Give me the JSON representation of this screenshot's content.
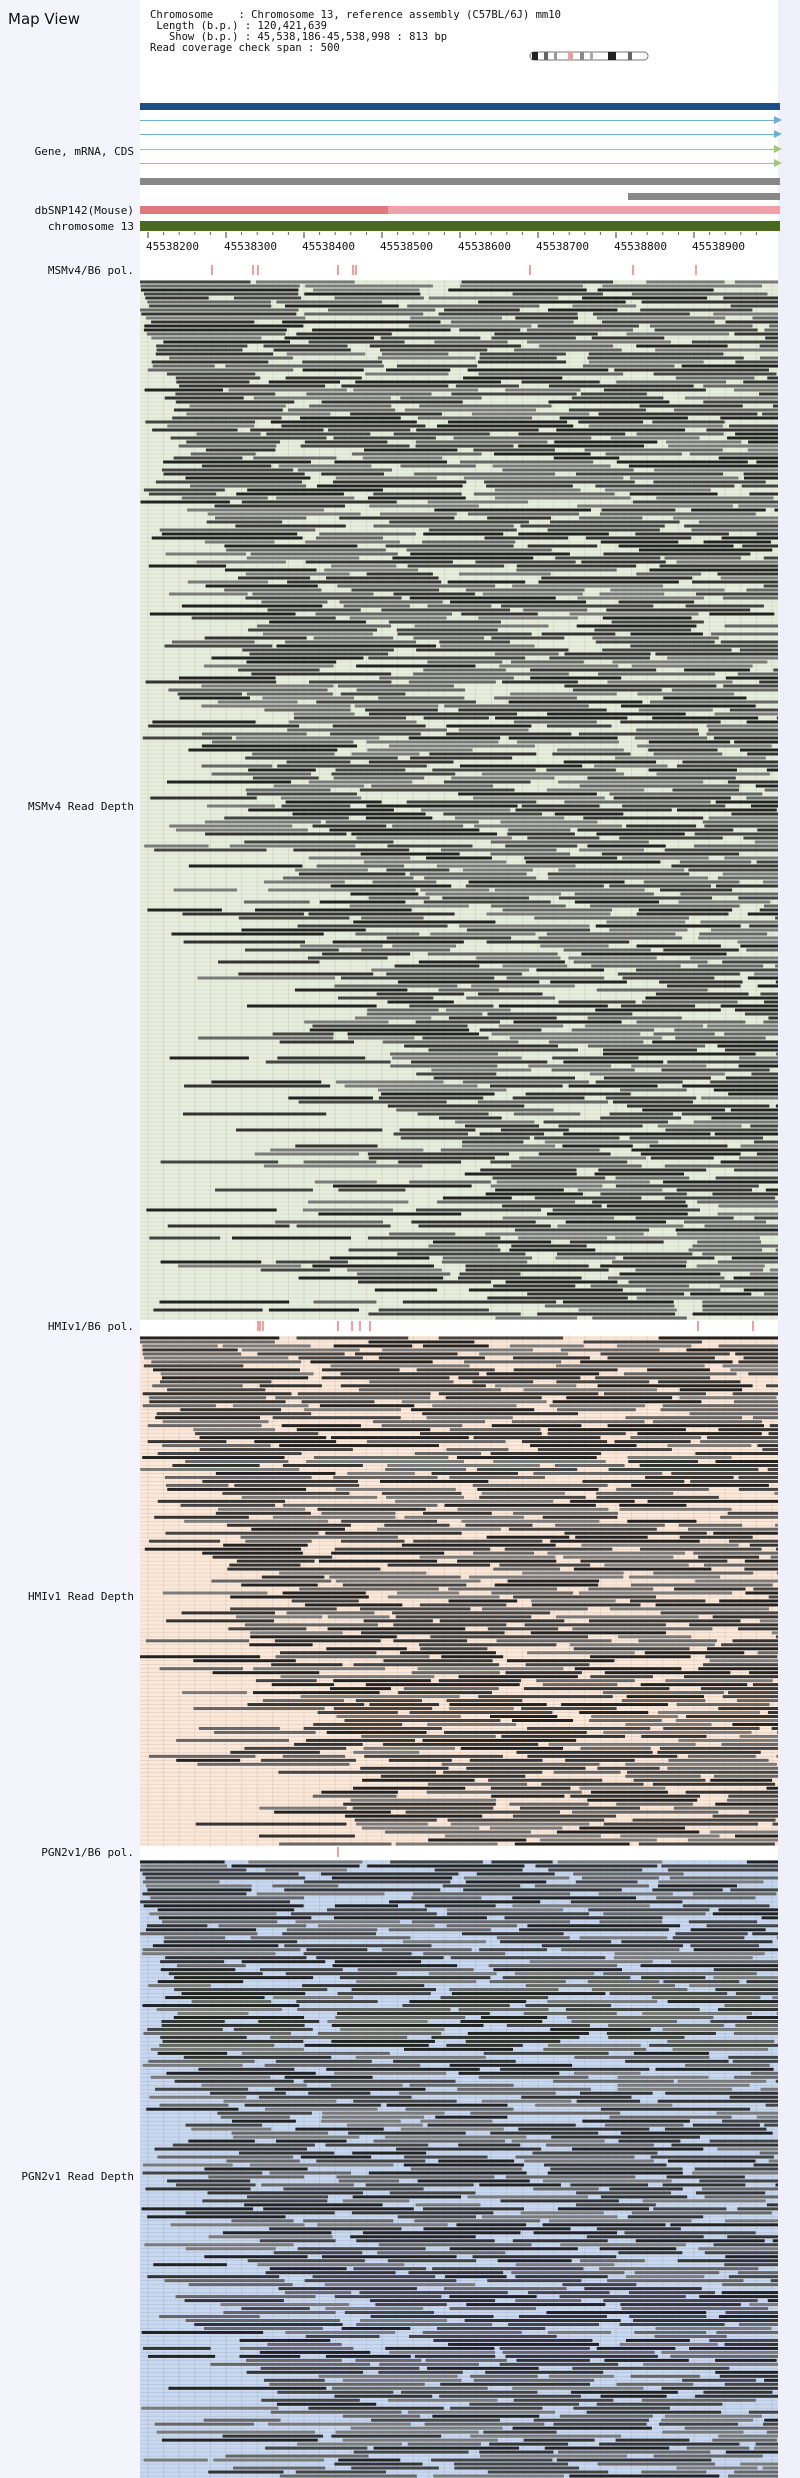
{
  "title": "Map View",
  "info": {
    "chromosome": "Chromosome    : Chromosome 13, reference assembly (C57BL/6J) mm10",
    "length": " Length (b.p.) : 120,421,639",
    "show": "   Show (b.p.) : 45,538,186-45,538,998 : 813 bp",
    "coverage": "Read coverage check span : 500"
  },
  "labels": {
    "gene": "Gene, mRNA, CDS",
    "dbsnp": "dbSNP142(Mouse)",
    "chrom": "chromosome 13",
    "pol1": "MSMv4/B6 pol.",
    "depth1": "MSMv4 Read Depth",
    "pol2": "HMIv1/B6 pol.",
    "depth2": "HMIv1 Read Depth",
    "pol3": "PGN2v1/B6 pol.",
    "depth3": "PGN2v1 Read Depth"
  },
  "ruler": [
    "45538200",
    "45538300",
    "45538400",
    "45538500",
    "45538600",
    "45538700",
    "45538800",
    "45538900"
  ],
  "colors": {
    "gene_main": "#1f4e86",
    "mrna": "#6ab0d8",
    "cds": "#a0c878",
    "gray_bar": "#888888",
    "dbsnp_dark": "#e07880",
    "dbsnp_light": "#f0a0a8",
    "chrom": "#4a6a20",
    "panel1_bg": "#e8eedc",
    "panel2_bg": "#fce8d8",
    "panel3_bg": "#c8d8f0",
    "pol_mark": "#e04040"
  },
  "icons": {
    "ideogram": "chromosome-ideogram-icon"
  }
}
